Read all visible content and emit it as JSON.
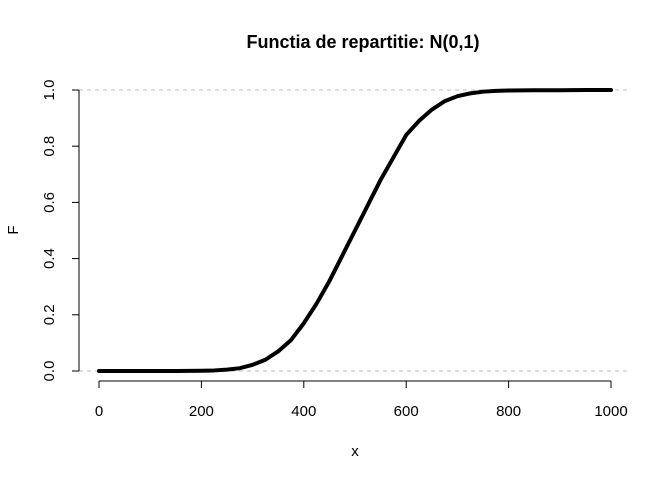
{
  "chart_data": {
    "type": "line",
    "title": "Functia de repartitie: N(0,1)",
    "xlabel": "x",
    "ylabel": "F",
    "xlim": [
      0,
      1000
    ],
    "ylim": [
      0,
      1
    ],
    "x_ticks": [
      0,
      200,
      400,
      600,
      800,
      1000
    ],
    "y_ticks": [
      0.0,
      0.2,
      0.4,
      0.6,
      0.8,
      1.0
    ],
    "x_tick_labels": [
      "0",
      "200",
      "400",
      "600",
      "800",
      "1000"
    ],
    "y_tick_labels": [
      "0.0",
      "0.2",
      "0.4",
      "0.6",
      "0.8",
      "1.0"
    ],
    "reference_lines": [
      0,
      1
    ],
    "series": [
      {
        "color": "#000000",
        "x": [
          0,
          50,
          100,
          150,
          200,
          225,
          250,
          275,
          300,
          325,
          350,
          375,
          400,
          425,
          450,
          475,
          500,
          525,
          550,
          575,
          600,
          625,
          650,
          675,
          700,
          725,
          750,
          775,
          800,
          850,
          900,
          950,
          1000
        ],
        "y": [
          0.0,
          0.0,
          0.0,
          0.0,
          0.001,
          0.002,
          0.005,
          0.01,
          0.022,
          0.04,
          0.07,
          0.11,
          0.17,
          0.24,
          0.32,
          0.41,
          0.5,
          0.59,
          0.68,
          0.76,
          0.84,
          0.89,
          0.93,
          0.96,
          0.978,
          0.988,
          0.994,
          0.997,
          0.998,
          0.999,
          0.999,
          1.0,
          1.0
        ]
      }
    ]
  }
}
